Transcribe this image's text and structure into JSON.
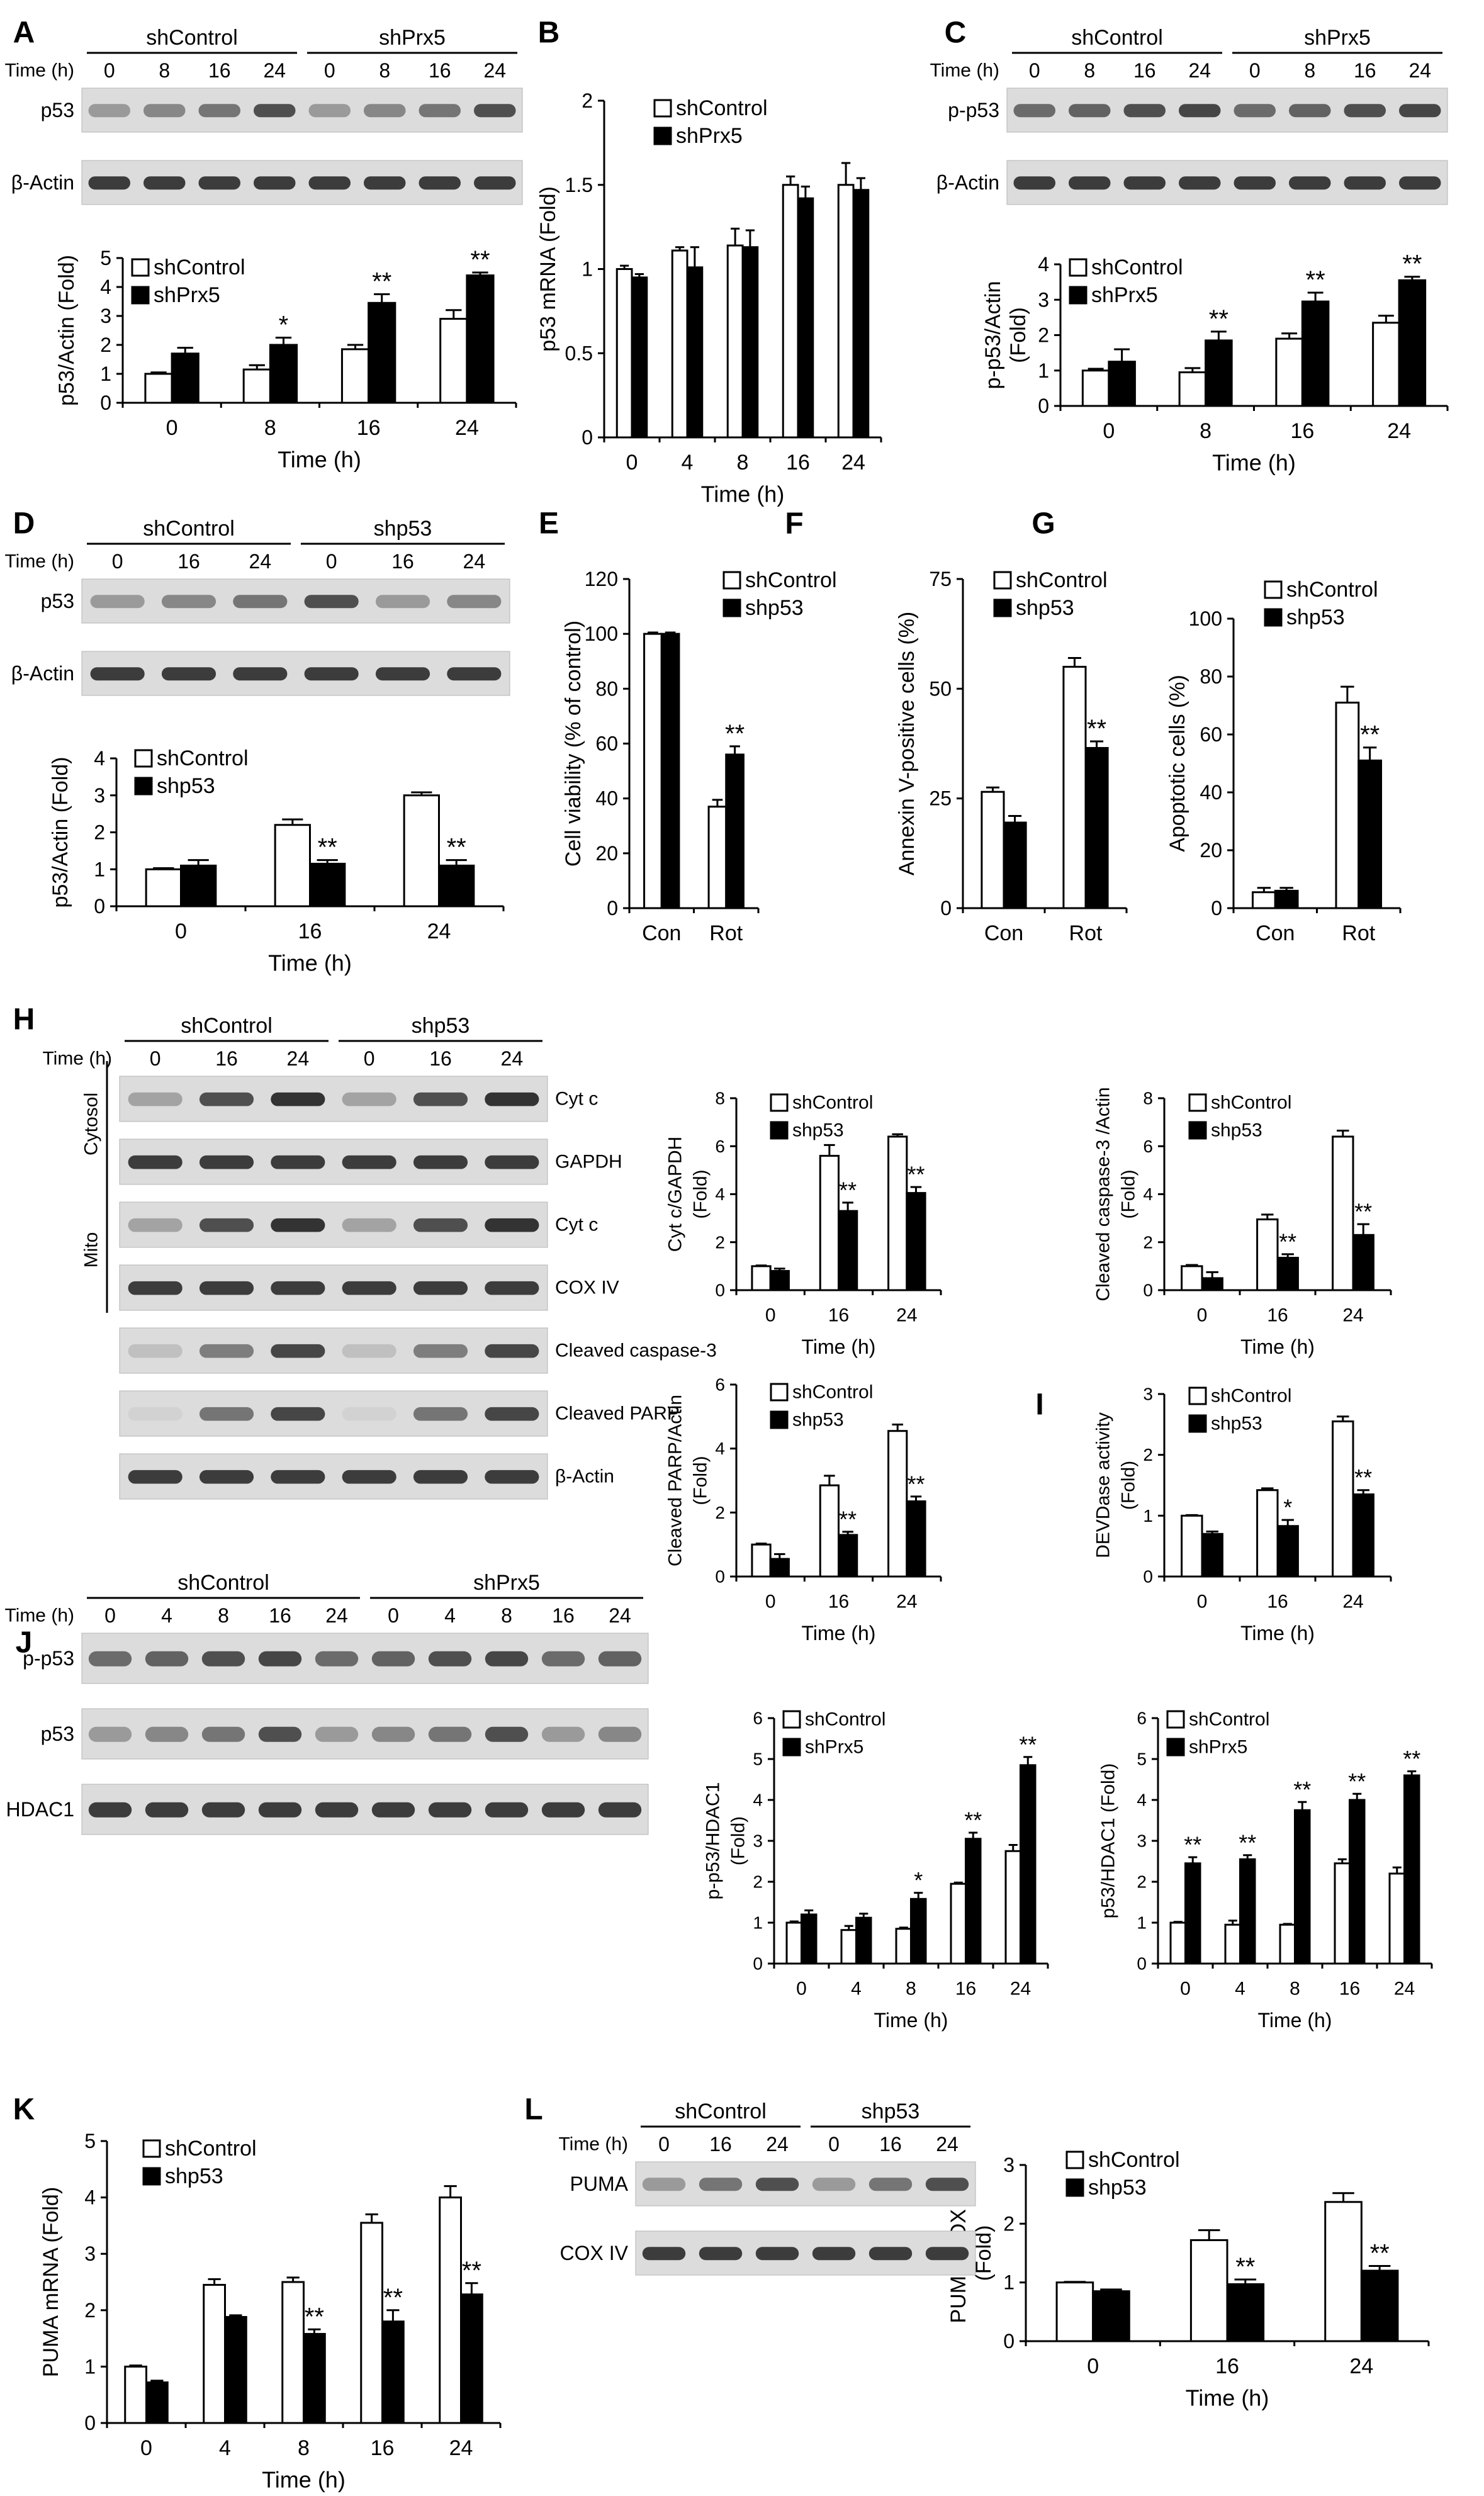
{
  "panels": [
    {
      "letter": "A"
    },
    {
      "letter": "B"
    },
    {
      "letter": "C"
    },
    {
      "letter": "D"
    },
    {
      "letter": "E"
    },
    {
      "letter": "F"
    },
    {
      "letter": "G"
    },
    {
      "letter": "H"
    },
    {
      "letter": "I"
    },
    {
      "letter": "J"
    },
    {
      "letter": "K"
    },
    {
      "letter": "L"
    }
  ],
  "blots": [
    {
      "id": "A",
      "group_labels": [
        "shControl",
        "shPrx5"
      ],
      "time_label": "Time (h)",
      "time_points": [
        "0",
        "8",
        "16",
        "24",
        "0",
        "8",
        "16",
        "24"
      ],
      "rows": [
        "p53",
        "β-Actin"
      ]
    },
    {
      "id": "C",
      "group_labels": [
        "shControl",
        "shPrx5"
      ],
      "time_label": "Time (h)",
      "time_points": [
        "0",
        "8",
        "16",
        "24",
        "0",
        "8",
        "16",
        "24"
      ],
      "rows": [
        "p-p53",
        "β-Actin"
      ]
    },
    {
      "id": "D",
      "group_labels": [
        "shControl",
        "shp53"
      ],
      "time_label": "Time (h)",
      "time_points": [
        "0",
        "16",
        "24",
        "0",
        "16",
        "24"
      ],
      "rows": [
        "p53",
        "β-Actin"
      ]
    },
    {
      "id": "H",
      "group_labels": [
        "shControl",
        "shp53"
      ],
      "time_label": "Time (h)",
      "time_points": [
        "0",
        "16",
        "24",
        "0",
        "16",
        "24"
      ],
      "rows": [
        "Cyt c",
        "GAPDH",
        "Cyt c",
        "COX IV",
        "Cleaved caspase-3",
        "Cleaved PARP",
        "β-Actin"
      ],
      "fractions": [
        "Cytosol",
        "Mito"
      ]
    },
    {
      "id": "J",
      "group_labels": [
        "shControl",
        "shPrx5"
      ],
      "time_label": "Time (h)",
      "time_points": [
        "0",
        "4",
        "8",
        "16",
        "24",
        "0",
        "4",
        "8",
        "16",
        "24"
      ],
      "rows": [
        "p-p53",
        "p53",
        "HDAC1"
      ]
    },
    {
      "id": "L",
      "group_labels": [
        "shControl",
        "shp53"
      ],
      "time_label": "Time (h)",
      "time_points": [
        "0",
        "16",
        "24",
        "0",
        "16",
        "24"
      ],
      "rows": [
        "PUMA",
        "COX IV"
      ]
    }
  ],
  "chart_data": [
    {
      "id": "A",
      "type": "bar",
      "categories": [
        "0",
        "8",
        "16",
        "24"
      ],
      "xlabel": "Time (h)",
      "ylabel": "p53/Actin (Fold)",
      "ylim": [
        0,
        5
      ],
      "yticks": [
        0,
        1,
        2,
        3,
        4,
        5
      ],
      "series": [
        {
          "name": "shControl",
          "values": [
            1.0,
            1.15,
            1.85,
            2.9
          ],
          "errors": [
            0.05,
            0.15,
            0.15,
            0.3
          ]
        },
        {
          "name": "shPrx5",
          "values": [
            1.7,
            2.0,
            3.45,
            4.4
          ],
          "errors": [
            0.2,
            0.25,
            0.3,
            0.1
          ]
        }
      ],
      "annotations": [
        {
          "series": 1,
          "index": 1,
          "text": "*"
        },
        {
          "series": 1,
          "index": 2,
          "text": "**"
        },
        {
          "series": 1,
          "index": 3,
          "text": "**"
        }
      ]
    },
    {
      "id": "B",
      "type": "bar",
      "categories": [
        "0",
        "4",
        "8",
        "16",
        "24"
      ],
      "xlabel": "Time (h)",
      "ylabel": "p53 mRNA (Fold)",
      "ylim": [
        0,
        2
      ],
      "yticks": [
        0,
        0.5,
        1,
        1.5,
        2
      ],
      "series": [
        {
          "name": "shControl",
          "values": [
            1.0,
            1.11,
            1.14,
            1.5,
            1.5
          ],
          "errors": [
            0.02,
            0.02,
            0.1,
            0.05,
            0.13
          ]
        },
        {
          "name": "shPrx5",
          "values": [
            0.95,
            1.01,
            1.13,
            1.42,
            1.47
          ],
          "errors": [
            0.02,
            0.12,
            0.1,
            0.07,
            0.07
          ]
        }
      ],
      "annotations": []
    },
    {
      "id": "C",
      "type": "bar",
      "categories": [
        "0",
        "8",
        "16",
        "24"
      ],
      "xlabel": "Time (h)",
      "ylabel": "p-p53/Actin (Fold)",
      "ylim": [
        0,
        4
      ],
      "yticks": [
        0,
        1,
        2,
        3,
        4
      ],
      "series": [
        {
          "name": "shControl",
          "values": [
            1.0,
            0.95,
            1.9,
            2.35
          ],
          "errors": [
            0.05,
            0.12,
            0.15,
            0.2
          ]
        },
        {
          "name": "shPrx5",
          "values": [
            1.25,
            1.85,
            2.95,
            3.55
          ],
          "errors": [
            0.35,
            0.25,
            0.25,
            0.1
          ]
        }
      ],
      "annotations": [
        {
          "series": 1,
          "index": 1,
          "text": "**"
        },
        {
          "series": 1,
          "index": 2,
          "text": "**"
        },
        {
          "series": 1,
          "index": 3,
          "text": "**"
        }
      ]
    },
    {
      "id": "D",
      "type": "bar",
      "categories": [
        "0",
        "16",
        "24"
      ],
      "xlabel": "Time (h)",
      "ylabel": "p53/Actin (Fold)",
      "ylim": [
        0,
        4
      ],
      "yticks": [
        0,
        1,
        2,
        3,
        4
      ],
      "series": [
        {
          "name": "shControl",
          "values": [
            1.0,
            2.2,
            3.0
          ],
          "errors": [
            0.03,
            0.15,
            0.08
          ]
        },
        {
          "name": "shp53",
          "values": [
            1.1,
            1.15,
            1.1
          ],
          "errors": [
            0.15,
            0.1,
            0.15
          ]
        }
      ],
      "annotations": [
        {
          "series": 1,
          "index": 1,
          "text": "**"
        },
        {
          "series": 1,
          "index": 2,
          "text": "**"
        }
      ]
    },
    {
      "id": "E",
      "type": "bar",
      "categories": [
        "Con",
        "Rot"
      ],
      "xlabel": "",
      "ylabel": "Cell viability (% of control)",
      "ylim": [
        0,
        120
      ],
      "yticks": [
        0,
        20,
        40,
        60,
        80,
        100,
        120
      ],
      "series": [
        {
          "name": "shControl",
          "values": [
            100,
            37
          ],
          "errors": [
            0.5,
            2.5
          ]
        },
        {
          "name": "shp53",
          "values": [
            100,
            56
          ],
          "errors": [
            0.5,
            3
          ]
        }
      ],
      "annotations": [
        {
          "series": 1,
          "index": 1,
          "text": "**"
        }
      ]
    },
    {
      "id": "F",
      "type": "bar",
      "categories": [
        "Con",
        "Rot"
      ],
      "xlabel": "",
      "ylabel": "Annexin V-positive cells (%)",
      "ylim": [
        0,
        75
      ],
      "yticks": [
        0,
        25,
        50,
        75
      ],
      "series": [
        {
          "name": "shControl",
          "values": [
            26.5,
            55
          ],
          "errors": [
            1,
            2
          ]
        },
        {
          "name": "shp53",
          "values": [
            19.5,
            36.5
          ],
          "errors": [
            1.5,
            1.5
          ]
        }
      ],
      "annotations": [
        {
          "series": 1,
          "index": 1,
          "text": "**"
        }
      ]
    },
    {
      "id": "G",
      "type": "bar",
      "categories": [
        "Con",
        "Rot"
      ],
      "xlabel": "",
      "ylabel": "Apoptotic cells (%)",
      "ylim": [
        0,
        100
      ],
      "yticks": [
        0,
        20,
        40,
        60,
        80,
        100
      ],
      "series": [
        {
          "name": "shControl",
          "values": [
            5.5,
            71
          ],
          "errors": [
            1.5,
            5.5
          ]
        },
        {
          "name": "shp53",
          "values": [
            6,
            51
          ],
          "errors": [
            1,
            4.5
          ]
        }
      ],
      "annotations": [
        {
          "series": 1,
          "index": 1,
          "text": "**"
        }
      ]
    },
    {
      "id": "H1",
      "type": "bar",
      "categories": [
        "0",
        "16",
        "24"
      ],
      "xlabel": "Time (h)",
      "ylabel": "Cyt c/GAPDH (Fold)",
      "ylim": [
        0,
        8
      ],
      "yticks": [
        0,
        2,
        4,
        6,
        8
      ],
      "series": [
        {
          "name": "shControl",
          "values": [
            1.0,
            5.6,
            6.4
          ],
          "errors": [
            0.03,
            0.45,
            0.1
          ]
        },
        {
          "name": "shp53",
          "values": [
            0.8,
            3.3,
            4.05
          ],
          "errors": [
            0.1,
            0.35,
            0.25
          ]
        }
      ],
      "annotations": [
        {
          "series": 1,
          "index": 1,
          "text": "**"
        },
        {
          "series": 1,
          "index": 2,
          "text": "**"
        }
      ]
    },
    {
      "id": "H2",
      "type": "bar",
      "categories": [
        "0",
        "16",
        "24"
      ],
      "xlabel": "Time (h)",
      "ylabel": "Cleaved caspase-3 /Actin (Fold)",
      "ylim": [
        0,
        8
      ],
      "yticks": [
        0,
        2,
        4,
        6,
        8
      ],
      "series": [
        {
          "name": "shControl",
          "values": [
            1.0,
            2.95,
            6.4
          ],
          "errors": [
            0.05,
            0.2,
            0.25
          ]
        },
        {
          "name": "shp53",
          "values": [
            0.5,
            1.35,
            2.3
          ],
          "errors": [
            0.25,
            0.15,
            0.45
          ]
        }
      ],
      "annotations": [
        {
          "series": 1,
          "index": 1,
          "text": "**"
        },
        {
          "series": 1,
          "index": 2,
          "text": "**"
        }
      ]
    },
    {
      "id": "H3",
      "type": "bar",
      "categories": [
        "0",
        "16",
        "24"
      ],
      "xlabel": "Time (h)",
      "ylabel": "Cleaved PARP/Actin (Fold)",
      "ylim": [
        0,
        6
      ],
      "yticks": [
        0,
        2,
        4,
        6
      ],
      "series": [
        {
          "name": "shControl",
          "values": [
            1.0,
            2.85,
            4.55
          ],
          "errors": [
            0.03,
            0.3,
            0.2
          ]
        },
        {
          "name": "shp53",
          "values": [
            0.55,
            1.3,
            2.35
          ],
          "errors": [
            0.15,
            0.1,
            0.15
          ]
        }
      ],
      "annotations": [
        {
          "series": 1,
          "index": 1,
          "text": "**"
        },
        {
          "series": 1,
          "index": 2,
          "text": "**"
        }
      ]
    },
    {
      "id": "I",
      "type": "bar",
      "categories": [
        "0",
        "16",
        "24"
      ],
      "xlabel": "Time (h)",
      "ylabel": "DEVDase activity (Fold)",
      "ylim": [
        0,
        3
      ],
      "yticks": [
        0,
        1,
        2,
        3
      ],
      "series": [
        {
          "name": "shControl",
          "values": [
            1.0,
            1.42,
            2.55
          ],
          "errors": [
            0.01,
            0.03,
            0.08
          ]
        },
        {
          "name": "shp53",
          "values": [
            0.7,
            0.83,
            1.35
          ],
          "errors": [
            0.04,
            0.1,
            0.07
          ]
        }
      ],
      "annotations": [
        {
          "series": 1,
          "index": 1,
          "text": "*"
        },
        {
          "series": 1,
          "index": 2,
          "text": "**"
        }
      ]
    },
    {
      "id": "J1",
      "type": "bar",
      "categories": [
        "0",
        "4",
        "8",
        "16",
        "24"
      ],
      "xlabel": "Time (h)",
      "ylabel": "p-p53/HDAC1 (Fold)",
      "ylim": [
        0,
        6
      ],
      "yticks": [
        0,
        1,
        2,
        3,
        4,
        5,
        6
      ],
      "series": [
        {
          "name": "shControl",
          "values": [
            1.0,
            0.82,
            0.85,
            1.95,
            2.75
          ],
          "errors": [
            0.03,
            0.1,
            0.03,
            0.03,
            0.15
          ]
        },
        {
          "name": "shPrx5",
          "values": [
            1.2,
            1.12,
            1.58,
            3.05,
            4.85
          ],
          "errors": [
            0.1,
            0.1,
            0.15,
            0.15,
            0.2
          ]
        }
      ],
      "annotations": [
        {
          "series": 1,
          "index": 2,
          "text": "*"
        },
        {
          "series": 1,
          "index": 3,
          "text": "**"
        },
        {
          "series": 1,
          "index": 4,
          "text": "**"
        }
      ]
    },
    {
      "id": "J2",
      "type": "bar",
      "categories": [
        "0",
        "4",
        "8",
        "16",
        "24"
      ],
      "xlabel": "Time (h)",
      "ylabel": "p53/HDAC1 (Fold)",
      "ylim": [
        0,
        6
      ],
      "yticks": [
        0,
        1,
        2,
        3,
        4,
        5,
        6
      ],
      "series": [
        {
          "name": "shControl",
          "values": [
            1.0,
            0.95,
            0.95,
            2.45,
            2.2
          ],
          "errors": [
            0.02,
            0.1,
            0.02,
            0.1,
            0.15
          ]
        },
        {
          "name": "shPrx5",
          "values": [
            2.45,
            2.55,
            3.75,
            4.0,
            4.6
          ],
          "errors": [
            0.15,
            0.1,
            0.2,
            0.15,
            0.1
          ]
        }
      ],
      "annotations": [
        {
          "series": 1,
          "index": 0,
          "text": "**"
        },
        {
          "series": 1,
          "index": 1,
          "text": "**"
        },
        {
          "series": 1,
          "index": 2,
          "text": "**"
        },
        {
          "series": 1,
          "index": 3,
          "text": "**"
        },
        {
          "series": 1,
          "index": 4,
          "text": "**"
        }
      ]
    },
    {
      "id": "K",
      "type": "bar",
      "categories": [
        "0",
        "4",
        "8",
        "16",
        "24"
      ],
      "xlabel": "Time (h)",
      "ylabel": "PUMA mRNA (Fold)",
      "ylim": [
        0,
        5
      ],
      "yticks": [
        0,
        1,
        2,
        3,
        4,
        5
      ],
      "series": [
        {
          "name": "shControl",
          "values": [
            1.0,
            2.45,
            2.5,
            3.55,
            4.0
          ],
          "errors": [
            0.02,
            0.1,
            0.08,
            0.15,
            0.2
          ]
        },
        {
          "name": "shp53",
          "values": [
            0.72,
            1.88,
            1.58,
            1.8,
            2.28
          ],
          "errors": [
            0.03,
            0.03,
            0.08,
            0.2,
            0.2
          ]
        }
      ],
      "annotations": [
        {
          "series": 1,
          "index": 2,
          "text": "**"
        },
        {
          "series": 1,
          "index": 3,
          "text": "**"
        },
        {
          "series": 1,
          "index": 4,
          "text": "**"
        }
      ]
    },
    {
      "id": "L",
      "type": "bar",
      "categories": [
        "0",
        "16",
        "24"
      ],
      "xlabel": "Time (h)",
      "ylabel": "PUMA/COX IV (Fold)",
      "ylim": [
        0,
        3
      ],
      "yticks": [
        0,
        1,
        2,
        3
      ],
      "series": [
        {
          "name": "shControl",
          "values": [
            1.0,
            1.72,
            2.37
          ],
          "errors": [
            0.01,
            0.17,
            0.15
          ]
        },
        {
          "name": "shp53",
          "values": [
            0.85,
            0.97,
            1.2
          ],
          "errors": [
            0.03,
            0.08,
            0.08
          ]
        }
      ],
      "annotations": [
        {
          "series": 1,
          "index": 1,
          "text": "**"
        },
        {
          "series": 1,
          "index": 2,
          "text": "**"
        }
      ]
    }
  ]
}
